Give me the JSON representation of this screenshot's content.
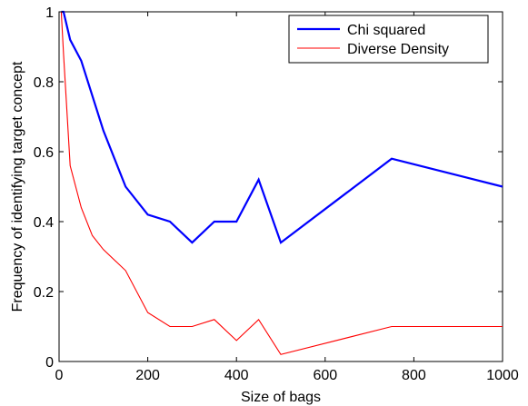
{
  "chart_data": {
    "type": "line",
    "title": "",
    "xlabel": "Size of bags",
    "ylabel": "Frequency of identifying target concept",
    "xlim": [
      0,
      1000
    ],
    "ylim": [
      0,
      1
    ],
    "xticks": [
      0,
      200,
      400,
      600,
      800,
      1000
    ],
    "yticks": [
      0,
      0.2,
      0.4,
      0.6,
      0.8,
      1
    ],
    "xtick_labels": [
      "0",
      "200",
      "400",
      "600",
      "800",
      "1000"
    ],
    "ytick_labels": [
      "0",
      "0.2",
      "0.4",
      "0.6",
      "0.8",
      "1"
    ],
    "grid": false,
    "legend_position": "top-right",
    "series": [
      {
        "name": "Chi squared",
        "color": "#0000ff",
        "x": [
          5,
          10,
          25,
          50,
          100,
          150,
          200,
          250,
          300,
          350,
          400,
          450,
          500,
          750,
          1000
        ],
        "y": [
          1.0,
          1.0,
          0.92,
          0.86,
          0.66,
          0.5,
          0.42,
          0.4,
          0.34,
          0.4,
          0.4,
          0.52,
          0.34,
          0.58,
          0.5
        ]
      },
      {
        "name": "Diverse Density",
        "color": "#ff0000",
        "x": [
          5,
          10,
          25,
          50,
          75,
          100,
          150,
          200,
          250,
          300,
          350,
          400,
          450,
          500,
          750,
          1000
        ],
        "y": [
          1.0,
          0.88,
          0.56,
          0.44,
          0.36,
          0.32,
          0.26,
          0.14,
          0.1,
          0.1,
          0.12,
          0.06,
          0.12,
          0.02,
          0.1,
          0.1
        ]
      }
    ]
  }
}
